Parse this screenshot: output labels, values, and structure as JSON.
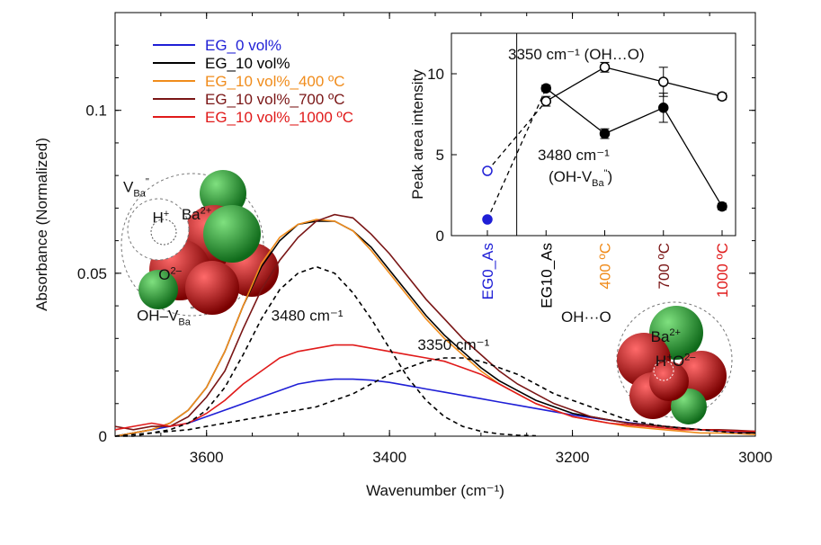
{
  "chart_data": [
    {
      "type": "line",
      "xlabel": "Wavenumber (cm⁻¹)",
      "ylabel": "Absorbance (Normalized)",
      "xlim": [
        3700,
        3000
      ],
      "ylim": [
        0,
        0.13
      ],
      "x_reversed": true,
      "xticks": [
        3600,
        3400,
        3200,
        3000
      ],
      "yticks": [
        0,
        0.05,
        0.1
      ],
      "ytick_labels": [
        "0",
        "0.05",
        "0.1"
      ],
      "legend_position": "top-left",
      "series": [
        {
          "name": "EG_0 vol%",
          "color": "#1f1fd6",
          "style": "solid",
          "x": [
            3700,
            3680,
            3660,
            3640,
            3620,
            3600,
            3580,
            3560,
            3540,
            3520,
            3500,
            3480,
            3460,
            3440,
            3420,
            3400,
            3380,
            3360,
            3340,
            3320,
            3300,
            3280,
            3260,
            3240,
            3220,
            3200,
            3180,
            3160,
            3140,
            3120,
            3100,
            3080,
            3060,
            3040,
            3020,
            3000
          ],
          "y": [
            0.0,
            0.001,
            0.002,
            0.003,
            0.004,
            0.006,
            0.008,
            0.01,
            0.012,
            0.014,
            0.016,
            0.017,
            0.0175,
            0.0175,
            0.0172,
            0.0165,
            0.0155,
            0.0145,
            0.0135,
            0.0125,
            0.0115,
            0.0105,
            0.0095,
            0.0085,
            0.0075,
            0.0065,
            0.0057,
            0.0049,
            0.0042,
            0.0036,
            0.003,
            0.0025,
            0.002,
            0.0016,
            0.0012,
            0.001
          ]
        },
        {
          "name": "EG_10 vol%",
          "color": "#000000",
          "style": "solid",
          "x": [
            3700,
            3680,
            3660,
            3640,
            3620,
            3600,
            3580,
            3560,
            3540,
            3520,
            3500,
            3480,
            3460,
            3440,
            3420,
            3400,
            3380,
            3360,
            3340,
            3320,
            3300,
            3280,
            3260,
            3240,
            3220,
            3200,
            3180,
            3160,
            3140,
            3120,
            3100,
            3080,
            3060,
            3040,
            3020,
            3000
          ],
          "y": [
            0.0,
            0.001,
            0.002,
            0.004,
            0.008,
            0.015,
            0.026,
            0.04,
            0.052,
            0.06,
            0.065,
            0.066,
            0.066,
            0.063,
            0.058,
            0.051,
            0.044,
            0.037,
            0.031,
            0.026,
            0.021,
            0.017,
            0.014,
            0.011,
            0.009,
            0.007,
            0.006,
            0.005,
            0.004,
            0.0035,
            0.003,
            0.0025,
            0.002,
            0.0018,
            0.0015,
            0.001
          ]
        },
        {
          "name": "EG_10 vol%_400 ºC",
          "color": "#f08c1c",
          "style": "solid",
          "x": [
            3700,
            3680,
            3660,
            3640,
            3620,
            3600,
            3580,
            3560,
            3540,
            3520,
            3500,
            3480,
            3460,
            3440,
            3420,
            3400,
            3380,
            3360,
            3340,
            3320,
            3300,
            3280,
            3260,
            3240,
            3220,
            3200,
            3180,
            3160,
            3140,
            3120,
            3100,
            3080,
            3060,
            3040,
            3020,
            3000
          ],
          "y": [
            0.0,
            0.001,
            0.002,
            0.004,
            0.008,
            0.015,
            0.026,
            0.04,
            0.053,
            0.061,
            0.065,
            0.0665,
            0.066,
            0.063,
            0.057,
            0.05,
            0.043,
            0.036,
            0.03,
            0.025,
            0.02,
            0.016,
            0.013,
            0.01,
            0.008,
            0.006,
            0.005,
            0.004,
            0.003,
            0.0025,
            0.002,
            0.0015,
            0.001,
            0.001,
            0.0008,
            0.0005
          ]
        },
        {
          "name": "EG_10 vol%_700 ºC",
          "color": "#7a1616",
          "style": "solid",
          "x": [
            3700,
            3680,
            3660,
            3640,
            3620,
            3600,
            3580,
            3560,
            3540,
            3520,
            3500,
            3480,
            3460,
            3440,
            3420,
            3400,
            3380,
            3360,
            3340,
            3320,
            3300,
            3280,
            3260,
            3240,
            3220,
            3200,
            3180,
            3160,
            3140,
            3120,
            3100,
            3080,
            3060,
            3040,
            3020,
            3000
          ],
          "y": [
            0.003,
            0.002,
            0.003,
            0.003,
            0.006,
            0.012,
            0.02,
            0.033,
            0.045,
            0.054,
            0.061,
            0.066,
            0.068,
            0.067,
            0.062,
            0.056,
            0.049,
            0.042,
            0.036,
            0.03,
            0.025,
            0.02,
            0.016,
            0.013,
            0.01,
            0.008,
            0.006,
            0.005,
            0.004,
            0.0035,
            0.003,
            0.0025,
            0.002,
            0.002,
            0.0018,
            0.0015
          ]
        },
        {
          "name": "EG_10 vol%_1000 ºC",
          "color": "#e01a1a",
          "style": "solid",
          "x": [
            3700,
            3680,
            3660,
            3640,
            3620,
            3600,
            3580,
            3560,
            3540,
            3520,
            3500,
            3480,
            3460,
            3440,
            3420,
            3400,
            3380,
            3360,
            3340,
            3320,
            3300,
            3280,
            3260,
            3240,
            3220,
            3200,
            3180,
            3160,
            3140,
            3120,
            3100,
            3080,
            3060,
            3040,
            3020,
            3000
          ],
          "y": [
            0.002,
            0.003,
            0.004,
            0.003,
            0.004,
            0.007,
            0.011,
            0.016,
            0.02,
            0.024,
            0.026,
            0.027,
            0.028,
            0.028,
            0.027,
            0.026,
            0.025,
            0.024,
            0.023,
            0.021,
            0.019,
            0.016,
            0.013,
            0.01,
            0.008,
            0.006,
            0.005,
            0.004,
            0.0035,
            0.003,
            0.0025,
            0.002,
            0.002,
            0.0018,
            0.0015,
            0.0015
          ]
        },
        {
          "name": "",
          "color": "#000000",
          "style": "dashed",
          "x": [
            3700,
            3680,
            3660,
            3640,
            3620,
            3600,
            3580,
            3560,
            3540,
            3520,
            3500,
            3480,
            3460,
            3440,
            3420,
            3400,
            3380,
            3360,
            3340,
            3320,
            3300,
            3280,
            3260,
            3240
          ],
          "y": [
            0.0,
            0.0,
            0.001,
            0.002,
            0.004,
            0.008,
            0.015,
            0.025,
            0.036,
            0.045,
            0.05,
            0.052,
            0.05,
            0.044,
            0.036,
            0.027,
            0.018,
            0.011,
            0.006,
            0.003,
            0.0015,
            0.0007,
            0.0003,
            0.0001
          ]
        },
        {
          "name": "",
          "color": "#000000",
          "style": "dashed",
          "x": [
            3700,
            3680,
            3660,
            3640,
            3620,
            3600,
            3580,
            3560,
            3540,
            3520,
            3500,
            3480,
            3460,
            3440,
            3420,
            3400,
            3380,
            3360,
            3340,
            3320,
            3300,
            3280,
            3260,
            3240,
            3220,
            3200,
            3180,
            3160,
            3140,
            3120,
            3100,
            3080,
            3060,
            3040,
            3020,
            3000
          ],
          "y": [
            0.0,
            0.0005,
            0.001,
            0.0015,
            0.002,
            0.003,
            0.004,
            0.005,
            0.006,
            0.007,
            0.008,
            0.009,
            0.011,
            0.013,
            0.016,
            0.019,
            0.021,
            0.023,
            0.024,
            0.024,
            0.023,
            0.021,
            0.019,
            0.016,
            0.013,
            0.011,
            0.009,
            0.007,
            0.005,
            0.004,
            0.003,
            0.0025,
            0.002,
            0.0015,
            0.001,
            0.001
          ]
        }
      ],
      "annotations": [
        {
          "text": "3480 cm⁻¹",
          "x": 3490,
          "y": 0.0355
        },
        {
          "text": "3350 cm⁻¹",
          "x": 3330,
          "y": 0.0265
        },
        {
          "text": "OH···O",
          "x": 3185,
          "y": 0.035
        },
        {
          "text": "OH–V",
          "sub": "Ba",
          "sup": "\"",
          "x": 3645,
          "y": 0.0355
        },
        {
          "text": "V",
          "sub": "Ba",
          "sup": "\"",
          "x": 3677,
          "y": 0.075
        },
        {
          "text": "H",
          "sup": "+",
          "x": 3650,
          "y": 0.0655
        },
        {
          "text": "Ba",
          "sup": "2+",
          "x": 3611,
          "y": 0.0665
        },
        {
          "text": "O",
          "sup": "2–",
          "x": 3640,
          "y": 0.048
        },
        {
          "text": "Ba",
          "sup": "2+",
          "x": 3098,
          "y": 0.029
        },
        {
          "text": "H",
          "sup": "+",
          "x": 3100,
          "y": 0.0215
        },
        {
          "text": "O",
          "sup": "2–",
          "x": 3078,
          "y": 0.0215
        }
      ]
    },
    {
      "type": "scatter",
      "ylabel": "Peak area intensity",
      "categories": [
        "EG0_As",
        "EG10_As",
        "400 ºC",
        "700 ºC",
        "1000 ºC"
      ],
      "category_colors": [
        "#1f1fd6",
        "#000000",
        "#f08c1c",
        "#7a1616",
        "#e01a1a"
      ],
      "ylim": [
        0,
        12.5
      ],
      "yticks": [
        0,
        5,
        10
      ],
      "series": [
        {
          "name": "3350 cm⁻¹ (OH…O)",
          "marker": "open-circle",
          "values": [
            4.0,
            8.3,
            10.4,
            9.5,
            8.6
          ],
          "errors": [
            0,
            0.3,
            0.3,
            0.9,
            0.2
          ]
        },
        {
          "name": "3480 cm⁻¹ (OH-V",
          "name_sub": "Ba",
          "name_sup": "\"",
          "name_end": ")",
          "marker": "filled-circle",
          "values": [
            1.0,
            9.1,
            6.3,
            7.9,
            1.8
          ],
          "errors": [
            0,
            0.2,
            0.3,
            0.9,
            0.2
          ]
        }
      ]
    }
  ]
}
